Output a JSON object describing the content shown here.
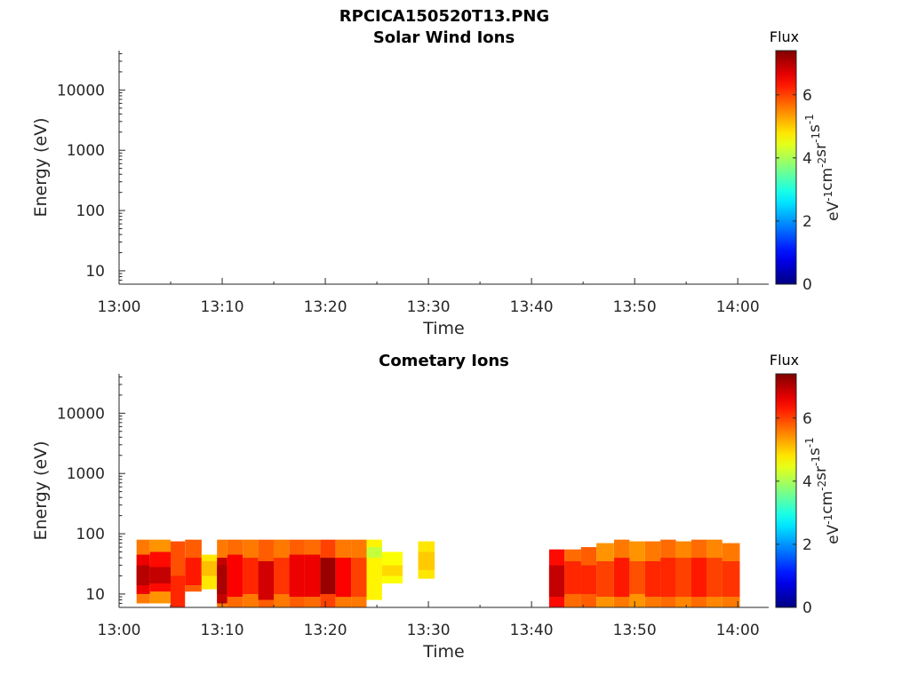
{
  "figure_title": "RPCICA150520T13.PNG",
  "chart_data": [
    {
      "type": "heatmap",
      "title": "Solar Wind Ions",
      "xlabel": "Time",
      "ylabel": "Energy (eV)",
      "x_ticks": [
        "13:00",
        "13:10",
        "13:20",
        "13:30",
        "13:40",
        "13:50",
        "14:00"
      ],
      "xlim": [
        "13:00",
        "14:03"
      ],
      "y_scale": "log",
      "y_ticks": [
        10,
        100,
        1000,
        10000
      ],
      "y_tick_labels": [
        "10",
        "100",
        "1000",
        "10000"
      ],
      "ylim": [
        6,
        45000
      ],
      "colorbar": {
        "label": "Flux",
        "unit": "eV-1cm-2sr-1s-1",
        "range": [
          0,
          7.4
        ],
        "ticks": [
          "0",
          "2",
          "4",
          "6"
        ]
      },
      "cells": []
    },
    {
      "type": "heatmap",
      "title": "Cometary Ions",
      "xlabel": "Time",
      "ylabel": "Energy (eV)",
      "x_ticks": [
        "13:00",
        "13:10",
        "13:20",
        "13:30",
        "13:40",
        "13:50",
        "14:00"
      ],
      "xlim": [
        "13:00",
        "14:03"
      ],
      "y_scale": "log",
      "y_ticks": [
        10,
        100,
        1000,
        10000
      ],
      "y_tick_labels": [
        "10",
        "100",
        "1000",
        "10000"
      ],
      "ylim": [
        6,
        45000
      ],
      "colorbar": {
        "label": "Flux",
        "unit": "eV-1cm-2sr-1s-1",
        "range": [
          0,
          7.4
        ],
        "ticks": [
          "0",
          "2",
          "4",
          "6"
        ]
      },
      "cell_fields": [
        "t_start_min",
        "t_end_min",
        "e_low_eV",
        "e_high_eV",
        "flux"
      ],
      "cells": [
        [
          1.7,
          3.0,
          7,
          80,
          5.6
        ],
        [
          1.7,
          3.0,
          10,
          45,
          6.6
        ],
        [
          1.7,
          3.0,
          14,
          30,
          7.0
        ],
        [
          3.0,
          5.0,
          7,
          80,
          5.4
        ],
        [
          3.0,
          5.0,
          11,
          50,
          6.4
        ],
        [
          3.0,
          5.0,
          15,
          28,
          6.9
        ],
        [
          5.0,
          6.4,
          10,
          75,
          5.9
        ],
        [
          5.0,
          6.4,
          6,
          20,
          6.2
        ],
        [
          6.4,
          8.0,
          11,
          80,
          5.8
        ],
        [
          6.4,
          8.0,
          14,
          40,
          6.3
        ],
        [
          8.0,
          9.5,
          12,
          45,
          4.8
        ],
        [
          8.0,
          9.5,
          20,
          35,
          5.1
        ],
        [
          9.5,
          10.5,
          6,
          80,
          5.6
        ],
        [
          9.5,
          10.5,
          7,
          40,
          6.9
        ],
        [
          9.5,
          10.5,
          10,
          30,
          7.1
        ],
        [
          10.5,
          12.0,
          6,
          80,
          5.7
        ],
        [
          10.5,
          12.0,
          9,
          45,
          6.5
        ],
        [
          12.0,
          13.5,
          6,
          80,
          5.6
        ],
        [
          12.0,
          13.5,
          10,
          40,
          6.2
        ],
        [
          13.5,
          15.0,
          6,
          80,
          5.8
        ],
        [
          13.5,
          15.0,
          8,
          35,
          6.8
        ],
        [
          15.0,
          16.5,
          6,
          80,
          5.6
        ],
        [
          15.0,
          16.5,
          10,
          40,
          6.1
        ],
        [
          16.5,
          18.0,
          6,
          80,
          5.8
        ],
        [
          16.5,
          18.0,
          9,
          45,
          6.6
        ],
        [
          18.0,
          19.5,
          6,
          80,
          5.7
        ],
        [
          18.0,
          19.5,
          9,
          45,
          6.6
        ],
        [
          19.5,
          21.0,
          6,
          80,
          6.0
        ],
        [
          19.5,
          21.0,
          10,
          40,
          7.2
        ],
        [
          21.0,
          22.5,
          6,
          80,
          5.6
        ],
        [
          21.0,
          22.5,
          9,
          40,
          6.5
        ],
        [
          22.5,
          24.0,
          6,
          80,
          5.6
        ],
        [
          22.5,
          24.0,
          9,
          40,
          6.0
        ],
        [
          24.0,
          25.5,
          8,
          80,
          4.7
        ],
        [
          24.0,
          25.5,
          40,
          60,
          4.2
        ],
        [
          25.5,
          27.5,
          15,
          50,
          4.6
        ],
        [
          25.5,
          27.5,
          20,
          30,
          4.9
        ],
        [
          29.0,
          30.6,
          18,
          75,
          4.8
        ],
        [
          29.0,
          30.6,
          25,
          50,
          5.0
        ],
        [
          41.7,
          43.2,
          6,
          55,
          6.4
        ],
        [
          41.7,
          43.2,
          9,
          30,
          6.9
        ],
        [
          43.2,
          44.8,
          6,
          55,
          5.7
        ],
        [
          43.2,
          44.8,
          10,
          35,
          6.2
        ],
        [
          44.8,
          46.3,
          6,
          60,
          5.8
        ],
        [
          44.8,
          46.3,
          10,
          30,
          6.2
        ],
        [
          46.3,
          48.0,
          6,
          70,
          5.4
        ],
        [
          46.3,
          48.0,
          9,
          35,
          6.0
        ],
        [
          48.0,
          49.5,
          6,
          80,
          5.6
        ],
        [
          48.0,
          49.5,
          9,
          40,
          6.3
        ],
        [
          49.5,
          51.0,
          6,
          75,
          5.4
        ],
        [
          49.5,
          51.0,
          10,
          35,
          5.9
        ],
        [
          51.0,
          52.5,
          6,
          75,
          5.6
        ],
        [
          51.0,
          52.5,
          9,
          35,
          6.2
        ],
        [
          52.5,
          54.0,
          6,
          80,
          5.7
        ],
        [
          52.5,
          54.0,
          9,
          40,
          6.2
        ],
        [
          54.0,
          55.5,
          6,
          75,
          5.5
        ],
        [
          54.0,
          55.5,
          9,
          40,
          6.0
        ],
        [
          55.5,
          57.0,
          6,
          80,
          5.7
        ],
        [
          55.5,
          57.0,
          9,
          40,
          6.3
        ],
        [
          57.0,
          58.5,
          6,
          80,
          5.5
        ],
        [
          57.0,
          58.5,
          9,
          40,
          6.0
        ],
        [
          58.5,
          60.2,
          6,
          70,
          5.6
        ],
        [
          58.5,
          60.2,
          9,
          35,
          6.1
        ]
      ]
    }
  ]
}
